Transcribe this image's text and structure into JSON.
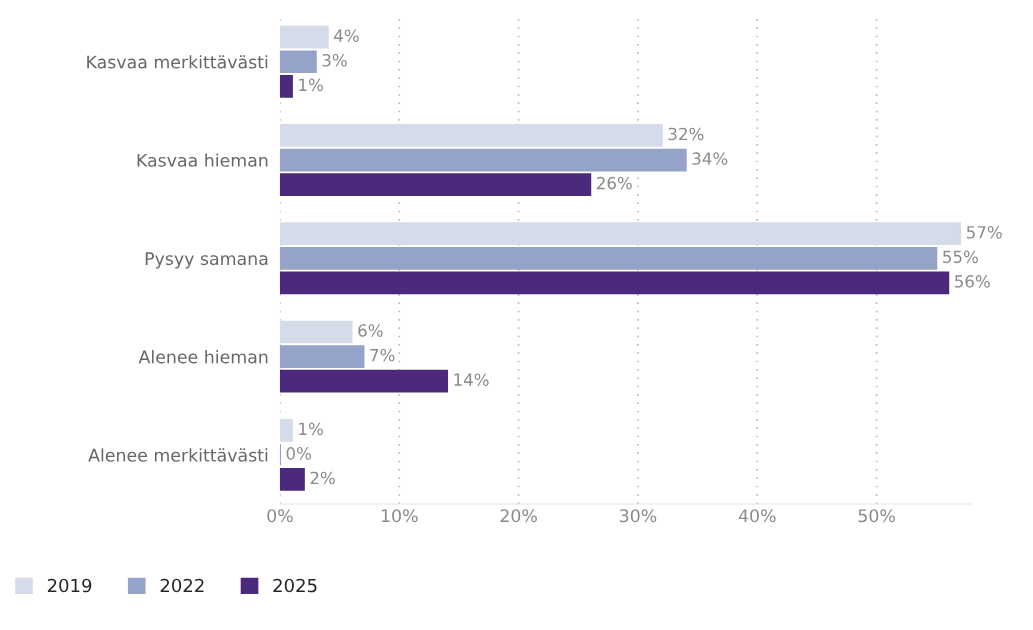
{
  "chart_data": {
    "type": "bar",
    "orientation": "horizontal",
    "categories": [
      "Kasvaa merkittävästi",
      "Kasvaa hieman",
      "Pysyy samana",
      "Alenee hieman",
      "Alenee merkittävästi"
    ],
    "series": [
      {
        "name": "2019",
        "color": "#d5dbe8",
        "values": [
          4,
          32,
          57,
          6,
          1
        ],
        "value_labels": [
          "4%",
          "32%",
          "57%",
          "6%",
          "1%"
        ]
      },
      {
        "name": "2022",
        "color": "#95a3c8",
        "values": [
          3,
          34,
          55,
          7,
          0
        ],
        "value_labels": [
          "3%",
          "34%",
          "55%",
          "7%",
          "0%"
        ]
      },
      {
        "name": "2025",
        "color": "#4b2a7e",
        "values": [
          1,
          26,
          56,
          14,
          2
        ],
        "value_labels": [
          "1%",
          "26%",
          "56%",
          "14%",
          "2%"
        ]
      }
    ],
    "xlim": [
      0,
      58
    ],
    "xticks": [
      {
        "value": 0,
        "label": "0%"
      },
      {
        "value": 10,
        "label": "10%"
      },
      {
        "value": 20,
        "label": "20%"
      },
      {
        "value": 30,
        "label": "30%"
      },
      {
        "value": 40,
        "label": "40%"
      },
      {
        "value": 50,
        "label": "50%"
      }
    ],
    "grid": "x",
    "legend": "bottom left"
  }
}
